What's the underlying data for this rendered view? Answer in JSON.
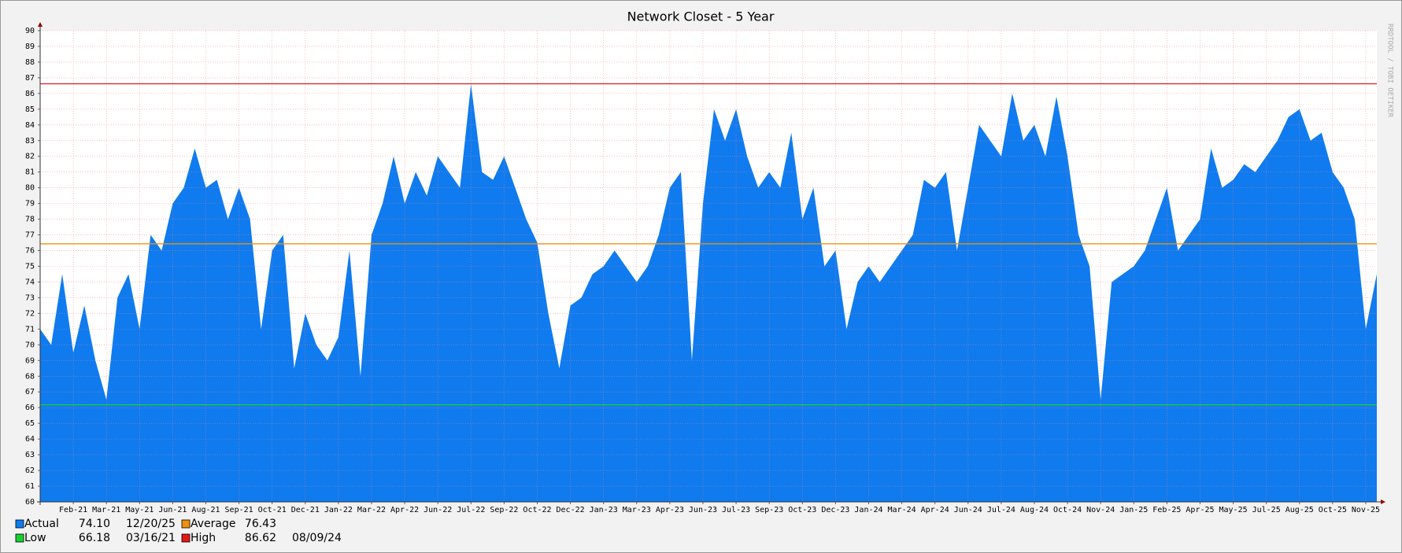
{
  "chart_data": {
    "type": "area",
    "title": "Network Closet - 5 Year",
    "watermark": "RRDTOOL / TOBI OETIKER",
    "categories": [
      null,
      null,
      null,
      "Feb-21",
      null,
      null,
      "Mar-21",
      null,
      null,
      "May-21",
      null,
      null,
      "Jun-21",
      null,
      null,
      "Aug-21",
      null,
      null,
      "Sep-21",
      null,
      null,
      "Oct-21",
      null,
      null,
      "Dec-21",
      null,
      null,
      "Jan-22",
      null,
      null,
      "Mar-22",
      null,
      null,
      "Apr-22",
      null,
      null,
      "Jun-22",
      null,
      null,
      "Jul-22",
      null,
      null,
      "Sep-22",
      null,
      null,
      "Oct-22",
      null,
      null,
      "Dec-22",
      null,
      null,
      "Jan-23",
      null,
      null,
      "Mar-23",
      null,
      null,
      "Apr-23",
      null,
      null,
      "Jun-23",
      null,
      null,
      "Jul-23",
      null,
      null,
      "Sep-23",
      null,
      null,
      "Oct-23",
      null,
      null,
      "Dec-23",
      null,
      null,
      "Jan-24",
      null,
      null,
      "Mar-24",
      null,
      null,
      "Apr-24",
      null,
      null,
      "Jun-24",
      null,
      null,
      "Jul-24",
      null,
      null,
      "Aug-24",
      null,
      null,
      "Oct-24",
      null,
      null,
      "Nov-24",
      null,
      null,
      "Jan-25",
      null,
      null,
      "Feb-25",
      null,
      null,
      "Apr-25",
      null,
      null,
      "May-25",
      null,
      null,
      "Jul-25",
      null,
      null,
      "Aug-25",
      null,
      null,
      "Oct-25",
      null,
      null,
      "Nov-25",
      null
    ],
    "series": [
      {
        "color": "#0f7bef",
        "values": [
          71,
          70,
          74.5,
          69.5,
          72.5,
          69,
          66.5,
          73,
          74.5,
          71,
          77,
          76,
          79,
          80,
          82.5,
          80,
          80.5,
          78,
          80,
          78,
          71,
          76,
          77,
          68.5,
          72,
          70,
          69,
          70.5,
          76,
          68,
          77,
          79,
          82,
          79,
          81,
          79.5,
          82,
          81,
          80,
          86.6,
          81,
          80.5,
          82,
          80,
          78,
          76.5,
          72,
          68.5,
          72.5,
          73,
          74.5,
          75,
          76,
          75,
          74,
          75,
          77,
          80,
          81,
          69,
          79,
          85,
          83,
          85,
          82,
          80,
          81,
          80,
          83.5,
          78,
          80,
          75,
          76,
          71,
          74,
          75,
          74,
          75,
          76,
          77,
          80.5,
          80,
          81,
          76,
          80,
          84,
          83,
          82,
          86,
          83,
          84,
          82,
          85.8,
          82,
          77,
          75,
          66.5,
          74,
          74.5,
          75,
          76,
          78,
          80,
          76,
          77,
          78,
          82.5,
          80,
          80.5,
          81.5,
          81,
          82,
          83,
          84.5,
          85,
          83,
          83.5,
          81,
          80,
          78,
          71,
          74.5
        ]
      }
    ],
    "ylim": [
      60,
      90
    ],
    "yticks": [
      60,
      61,
      62,
      63,
      64,
      65,
      66,
      67,
      68,
      69,
      70,
      71,
      72,
      73,
      74,
      75,
      76,
      77,
      78,
      79,
      80,
      81,
      82,
      83,
      84,
      85,
      86,
      87,
      88,
      89,
      90
    ],
    "grid": true,
    "stats": [
      {
        "name": "Actual",
        "value": 74.1,
        "label": "74.10",
        "date": "12/20/25",
        "color": "#0f7bef",
        "line": false
      },
      {
        "name": "Average",
        "value": 76.43,
        "label": "76.43",
        "color": "#f0900c",
        "line": true
      },
      {
        "name": "Low",
        "value": 66.18,
        "label": "66.18",
        "date": "03/16/21",
        "color": "#18d030",
        "line": true
      },
      {
        "name": "High",
        "value": 86.62,
        "label": "86.62",
        "date": "08/09/24",
        "color": "#e01818",
        "line": true
      }
    ]
  }
}
